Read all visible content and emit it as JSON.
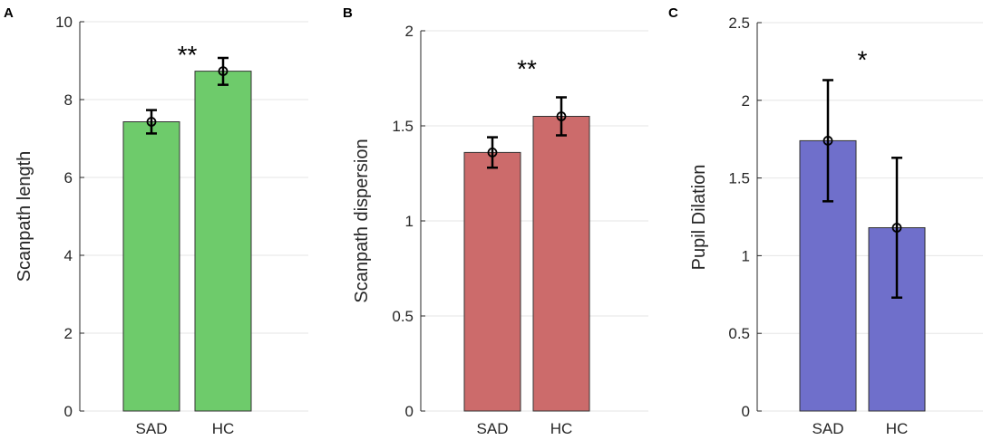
{
  "chart_data": [
    {
      "type": "bar",
      "panel_label": "A",
      "title": "",
      "xlabel": "",
      "ylabel": "Scanpath length",
      "categories": [
        "SAD",
        "HC"
      ],
      "values": [
        7.43,
        8.73
      ],
      "error": [
        [
          7.13,
          7.73
        ],
        [
          8.38,
          9.07
        ]
      ],
      "ylim": [
        0,
        10
      ],
      "yticks": [
        0,
        2,
        4,
        6,
        8,
        10
      ],
      "ytick_labels": [
        "0",
        "2",
        "4",
        "6",
        "8",
        "10"
      ],
      "bar_color": "#6ECB6B",
      "significance": {
        "label": "**",
        "y": 9.3
      },
      "grid": true
    },
    {
      "type": "bar",
      "panel_label": "B",
      "title": "",
      "xlabel": "",
      "ylabel": "Scanpath dispersion",
      "categories": [
        "SAD",
        "HC"
      ],
      "values": [
        1.36,
        1.55
      ],
      "error": [
        [
          1.28,
          1.44
        ],
        [
          1.45,
          1.65
        ]
      ],
      "ylim": [
        0,
        2
      ],
      "yticks": [
        0,
        0.5,
        1,
        1.5,
        2
      ],
      "ytick_labels": [
        "0",
        "0.5",
        "1",
        "1.5",
        "2"
      ],
      "bar_color": "#CC6B6B",
      "significance": {
        "label": "**",
        "y": 1.83
      },
      "grid": true
    },
    {
      "type": "bar",
      "panel_label": "C",
      "title": "",
      "xlabel": "",
      "ylabel": "Pupil Dilation",
      "categories": [
        "SAD",
        "HC"
      ],
      "values": [
        1.74,
        1.18
      ],
      "error": [
        [
          1.35,
          2.13
        ],
        [
          0.73,
          1.63
        ]
      ],
      "ylim": [
        0,
        2.5
      ],
      "yticks": [
        0,
        0.5,
        1,
        1.5,
        2,
        2.5
      ],
      "ytick_labels": [
        "0",
        "0.5",
        "1",
        "1.5",
        "2",
        "2.5"
      ],
      "bar_color": "#6F6FCB",
      "significance": {
        "label": "*",
        "y": 2.3
      },
      "grid": true
    }
  ]
}
